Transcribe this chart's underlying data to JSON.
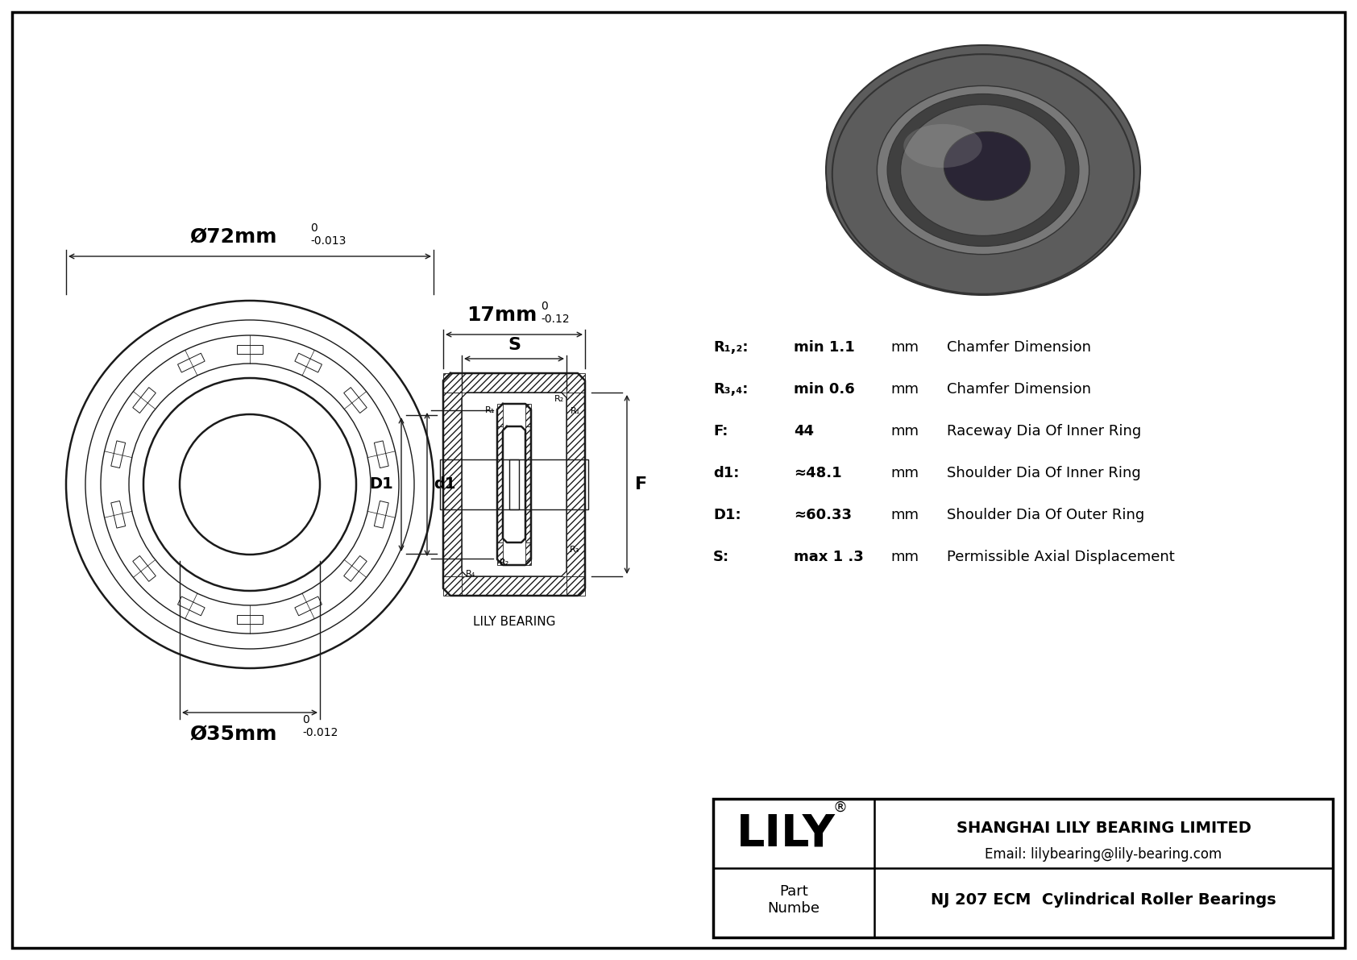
{
  "bg_color": "#ffffff",
  "lc": "#1a1a1a",
  "title": "NJ 207 ECM  Cylindrical Roller Bearings",
  "company": "SHANGHAI LILY BEARING LIMITED",
  "email": "Email: lilybearing@lily-bearing.com",
  "part_label": "Part\nNumbe",
  "lily_text": "LILY",
  "lily_reg": "®",
  "watermark": "LILY BEARING",
  "dim_72": "Ø72mm",
  "dim_72_sup": "0",
  "dim_72_sub": "-0.013",
  "dim_35": "Ø35mm",
  "dim_35_sup": "0",
  "dim_35_sub": "-0.012",
  "dim_17": "17mm",
  "dim_17_sup": "0",
  "dim_17_sub": "-0.12",
  "label_S": "S",
  "label_D1": "D1",
  "label_d1": "d1",
  "label_F": "F",
  "spec_rows": [
    {
      "label": "R₁,₂:",
      "value": "min 1.1",
      "unit": "mm",
      "desc": "Chamfer Dimension"
    },
    {
      "label": "R₃,₄:",
      "value": "min 0.6",
      "unit": "mm",
      "desc": "Chamfer Dimension"
    },
    {
      "label": "F:",
      "value": "44",
      "unit": "mm",
      "desc": "Raceway Dia Of Inner Ring"
    },
    {
      "label": "d1:",
      "value": "≈48.1",
      "unit": "mm",
      "desc": "Shoulder Dia Of Inner Ring"
    },
    {
      "label": "D1:",
      "value": "≈60.33",
      "unit": "mm",
      "desc": "Shoulder Dia Of Outer Ring"
    },
    {
      "label": "S:",
      "value": "max 1 .3",
      "unit": "mm",
      "desc": "Permissible Axial Displacement"
    }
  ],
  "photo_colors": {
    "outer_dark": "#5c5c5c",
    "outer_mid": "#787878",
    "outer_light": "#909090",
    "inner_dark": "#404040",
    "inner_mid": "#686868",
    "bore_dark": "#2a2535",
    "bore_mid": "#3d3848",
    "edge_dark": "#333333",
    "highlight": "#aaaaaa"
  }
}
